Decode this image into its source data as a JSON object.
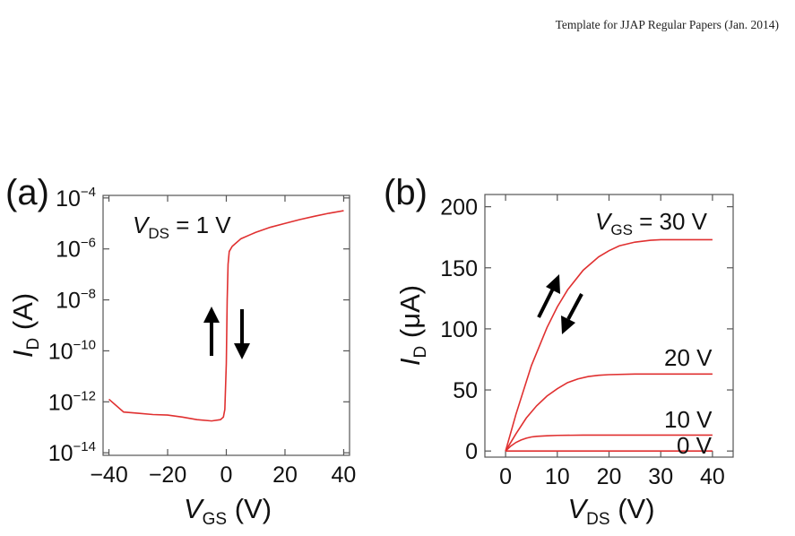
{
  "header": {
    "text": "Template for JJAP Regular Papers (Jan. 2014)"
  },
  "colors": {
    "curve": "#e03030",
    "arrow": "#000000",
    "frame": "#555555"
  },
  "chart_data": [
    {
      "panel": "(a)",
      "type": "line",
      "xlabel": {
        "main": "V",
        "sub": "GS",
        "unit": " (V)"
      },
      "ylabel": {
        "main": "I",
        "sub": "D",
        "unit": " (A)"
      },
      "xlim": [
        -42,
        42
      ],
      "ylim": [
        -14.1,
        -3.9
      ],
      "y_scale": "log",
      "x_ticks": [
        -40,
        -20,
        0,
        20,
        40
      ],
      "x_tick_labels": [
        "−40",
        "−20",
        "0",
        "20",
        "40"
      ],
      "y_ticks": [
        -4,
        -6,
        -8,
        -10,
        -12,
        -14
      ],
      "y_tick_labels": [
        {
          "base": "10",
          "exp": "−4"
        },
        {
          "base": "10",
          "exp": "−6"
        },
        {
          "base": "10",
          "exp": "−8"
        },
        {
          "base": "10",
          "exp": "−10"
        },
        {
          "base": "10",
          "exp": "−12"
        },
        {
          "base": "10",
          "exp": "−14"
        }
      ],
      "annotation": {
        "main": "V",
        "sub": "DS",
        "rest": " = 1 V"
      },
      "arrows": [
        "up",
        "down"
      ],
      "series": [
        {
          "x": [
            -40,
            -35,
            -30,
            -25,
            -20,
            -15,
            -10,
            -5,
            -2,
            -1,
            -0.5,
            0,
            0.3,
            0.6,
            1,
            2,
            3,
            5,
            8,
            10,
            15,
            20,
            25,
            30,
            35,
            40
          ],
          "y": [
            -11.9,
            -12.4,
            -12.45,
            -12.5,
            -12.52,
            -12.6,
            -12.7,
            -12.75,
            -12.7,
            -12.6,
            -12.3,
            -10.5,
            -8,
            -6.6,
            -6.1,
            -5.9,
            -5.8,
            -5.6,
            -5.45,
            -5.35,
            -5.15,
            -5.0,
            -4.85,
            -4.72,
            -4.6,
            -4.5
          ]
        }
      ]
    },
    {
      "panel": "(b)",
      "type": "line",
      "xlabel": {
        "main": "V",
        "sub": "DS",
        "unit": " (V)"
      },
      "ylabel": {
        "main": "I",
        "sub": "D",
        "unit": " (μA)"
      },
      "xlim": [
        -4,
        44
      ],
      "ylim": [
        -5,
        210
      ],
      "x_ticks": [
        0,
        10,
        20,
        30,
        40
      ],
      "x_tick_labels": [
        "0",
        "10",
        "20",
        "30",
        "40"
      ],
      "y_ticks": [
        0,
        50,
        100,
        150,
        200
      ],
      "y_tick_labels": [
        "0",
        "50",
        "100",
        "150",
        "200"
      ],
      "annotation": {
        "main": "V",
        "sub": "GS",
        "rest": " = 30 V"
      },
      "arrows": [
        "up-right",
        "down-left"
      ],
      "series": [
        {
          "name": "30 V",
          "x": [
            0,
            2,
            5,
            8,
            10,
            12,
            15,
            18,
            20,
            22,
            25,
            28,
            30,
            33,
            36,
            40
          ],
          "y": [
            0,
            30,
            70,
            101,
            118,
            132,
            148,
            159,
            164,
            168,
            171,
            172.5,
            173,
            173,
            173,
            173
          ]
        },
        {
          "name": "20 V",
          "x": [
            0,
            2,
            4,
            6,
            8,
            10,
            12,
            14,
            16,
            18,
            20,
            25,
            30,
            35,
            40
          ],
          "y": [
            0,
            14,
            27,
            37,
            45,
            51,
            56,
            59,
            61,
            62,
            62.5,
            63,
            63,
            63,
            63
          ]
        },
        {
          "name": "10 V",
          "x": [
            0,
            1,
            2,
            3,
            4,
            5,
            6,
            8,
            10,
            15,
            20,
            30,
            40
          ],
          "y": [
            0,
            4,
            7,
            9,
            10.5,
            11.5,
            12,
            12.5,
            12.8,
            13,
            13,
            13,
            13
          ]
        },
        {
          "name": "0 V",
          "x": [
            0,
            10,
            20,
            30,
            40
          ],
          "y": [
            0,
            0,
            0,
            0,
            0
          ]
        }
      ],
      "series_labels": [
        "20 V",
        "10 V",
        "0 V"
      ]
    }
  ]
}
